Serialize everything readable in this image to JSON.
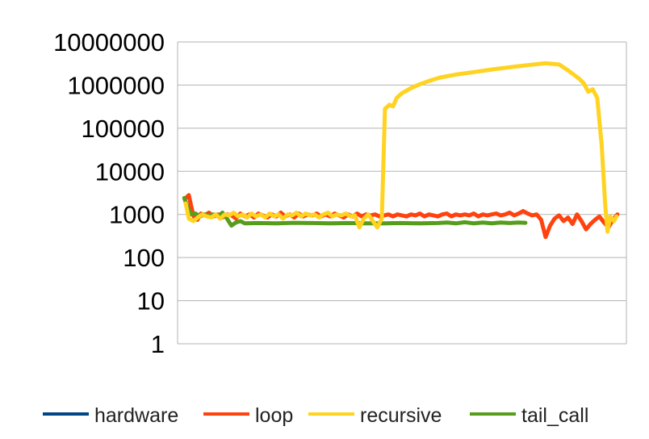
{
  "chart_data": {
    "type": "line",
    "title": "",
    "xlabel": "",
    "ylabel": "",
    "yscale": "log",
    "ylim": [
      1,
      10000000
    ],
    "yticks": [
      "1",
      "10",
      "100",
      "1000",
      "10000",
      "100000",
      "1000000",
      "10000000"
    ],
    "grid": "horizontal",
    "legend_position": "bottom",
    "xlim": [
      0,
      100
    ],
    "series": [
      {
        "name": "hardware",
        "color": "#004586",
        "points": []
      },
      {
        "name": "loop",
        "color": "#ff420e",
        "points": [
          [
            1.8,
            2400
          ],
          [
            2.5,
            2800
          ],
          [
            3,
            1600
          ],
          [
            3.6,
            900
          ],
          [
            4.4,
            750
          ],
          [
            5.2,
            1050
          ],
          [
            6,
            950
          ],
          [
            7,
            1100
          ],
          [
            8,
            900
          ],
          [
            9,
            1000
          ],
          [
            10,
            850
          ],
          [
            11,
            1000
          ],
          [
            12,
            950
          ],
          [
            13,
            800
          ],
          [
            14,
            1050
          ],
          [
            15,
            900
          ],
          [
            16,
            1000
          ],
          [
            17,
            850
          ],
          [
            18,
            1050
          ],
          [
            19,
            950
          ],
          [
            20,
            850
          ],
          [
            21,
            1000
          ],
          [
            22,
            900
          ],
          [
            23,
            1100
          ],
          [
            24,
            900
          ],
          [
            25,
            1000
          ],
          [
            26,
            850
          ],
          [
            27,
            1050
          ],
          [
            28,
            900
          ],
          [
            29,
            1000
          ],
          [
            30,
            950
          ],
          [
            31,
            1050
          ],
          [
            32,
            900
          ],
          [
            33,
            1000
          ],
          [
            34,
            900
          ],
          [
            35,
            1050
          ],
          [
            36,
            950
          ],
          [
            37,
            850
          ],
          [
            38,
            1000
          ],
          [
            39,
            900
          ],
          [
            40,
            1050
          ],
          [
            41,
            900
          ],
          [
            42,
            1000
          ],
          [
            43,
            950
          ],
          [
            44,
            1000
          ],
          [
            45,
            900
          ],
          [
            46,
            950
          ],
          [
            47,
            1000
          ],
          [
            48,
            900
          ],
          [
            49,
            1000
          ],
          [
            50,
            950
          ],
          [
            51,
            900
          ],
          [
            52,
            1000
          ],
          [
            53,
            950
          ],
          [
            54,
            1050
          ],
          [
            55,
            900
          ],
          [
            56,
            1000
          ],
          [
            57,
            950
          ],
          [
            58,
            900
          ],
          [
            59,
            1000
          ],
          [
            60,
            1050
          ],
          [
            61,
            900
          ],
          [
            62,
            1000
          ],
          [
            63,
            950
          ],
          [
            64,
            1000
          ],
          [
            65,
            950
          ],
          [
            66,
            1050
          ],
          [
            67,
            900
          ],
          [
            68,
            1000
          ],
          [
            69,
            950
          ],
          [
            70,
            1000
          ],
          [
            71,
            1050
          ],
          [
            72,
            950
          ],
          [
            73,
            1000
          ],
          [
            74,
            1100
          ],
          [
            75,
            950
          ],
          [
            76,
            1050
          ],
          [
            77,
            1200
          ],
          [
            78,
            1050
          ],
          [
            79,
            950
          ],
          [
            80,
            1000
          ],
          [
            81,
            750
          ],
          [
            82,
            300
          ],
          [
            83,
            550
          ],
          [
            84,
            800
          ],
          [
            85,
            950
          ],
          [
            86,
            700
          ],
          [
            87,
            850
          ],
          [
            88,
            600
          ],
          [
            89,
            1000
          ],
          [
            90,
            700
          ],
          [
            91,
            450
          ],
          [
            92,
            600
          ],
          [
            93,
            750
          ],
          [
            94,
            900
          ],
          [
            95,
            650
          ],
          [
            96,
            500
          ],
          [
            97,
            750
          ],
          [
            98,
            1000
          ]
        ]
      },
      {
        "name": "recursive",
        "color": "#ffd320",
        "points": [
          [
            1.8,
            1800
          ],
          [
            2.5,
            800
          ],
          [
            3.5,
            700
          ],
          [
            4.5,
            850
          ],
          [
            5.5,
            1000
          ],
          [
            6.5,
            900
          ],
          [
            7.5,
            850
          ],
          [
            8.5,
            1000
          ],
          [
            9.5,
            800
          ],
          [
            10.5,
            1000
          ],
          [
            11.5,
            950
          ],
          [
            12.5,
            1100
          ],
          [
            13.5,
            900
          ],
          [
            14.5,
            1000
          ],
          [
            15.5,
            850
          ],
          [
            16.5,
            1050
          ],
          [
            17.5,
            900
          ],
          [
            18.5,
            1000
          ],
          [
            19.5,
            850
          ],
          [
            20.5,
            1050
          ],
          [
            21.5,
            900
          ],
          [
            22.5,
            1000
          ],
          [
            23.5,
            800
          ],
          [
            24.5,
            1000
          ],
          [
            25.5,
            950
          ],
          [
            26.5,
            1100
          ],
          [
            27.5,
            900
          ],
          [
            28.5,
            1050
          ],
          [
            29.5,
            950
          ],
          [
            30.5,
            1000
          ],
          [
            31.5,
            850
          ],
          [
            32.5,
            1000
          ],
          [
            33.5,
            1100
          ],
          [
            34.5,
            900
          ],
          [
            35.5,
            1000
          ],
          [
            36.5,
            950
          ],
          [
            37.5,
            1050
          ],
          [
            38.5,
            900
          ],
          [
            39.5,
            950
          ],
          [
            40.5,
            500
          ],
          [
            41.5,
            800
          ],
          [
            42.5,
            1000
          ],
          [
            43.5,
            700
          ],
          [
            44.5,
            500
          ],
          [
            45.5,
            800
          ],
          [
            46.2,
            280000
          ],
          [
            47.2,
            350000
          ],
          [
            48,
            320000
          ],
          [
            48.8,
            500000
          ],
          [
            50,
            650000
          ],
          [
            52,
            850000
          ],
          [
            54,
            1050000
          ],
          [
            56,
            1250000
          ],
          [
            58.5,
            1500000
          ],
          [
            62,
            1750000
          ],
          [
            66,
            2000000
          ],
          [
            70,
            2300000
          ],
          [
            74,
            2600000
          ],
          [
            78,
            2900000
          ],
          [
            82,
            3200000
          ],
          [
            85,
            3000000
          ],
          [
            87,
            2200000
          ],
          [
            89.5,
            1400000
          ],
          [
            90.5,
            1100000
          ],
          [
            91.5,
            700000
          ],
          [
            92.5,
            800000
          ],
          [
            93.5,
            500000
          ],
          [
            94.5,
            40000
          ],
          [
            95.3,
            1500
          ],
          [
            95.8,
            400
          ],
          [
            96.4,
            900
          ],
          [
            97.2,
            700
          ],
          [
            97.8,
            900
          ]
        ]
      },
      {
        "name": "tail_call",
        "color": "#579d1c",
        "points": [
          [
            1.5,
            2400
          ],
          [
            2.2,
            1500
          ],
          [
            3,
            1000
          ],
          [
            4,
            1050
          ],
          [
            5,
            900
          ],
          [
            6,
            1000
          ],
          [
            7,
            950
          ],
          [
            8,
            1000
          ],
          [
            9,
            900
          ],
          [
            10,
            1100
          ],
          [
            11,
            800
          ],
          [
            12,
            550
          ],
          [
            13,
            650
          ],
          [
            14,
            700
          ],
          [
            15,
            620
          ],
          [
            18,
            630
          ],
          [
            22,
            620
          ],
          [
            26,
            640
          ],
          [
            30,
            630
          ],
          [
            34,
            620
          ],
          [
            38,
            630
          ],
          [
            42,
            620
          ],
          [
            46,
            620
          ],
          [
            50,
            630
          ],
          [
            54,
            620
          ],
          [
            58,
            630
          ],
          [
            60,
            650
          ],
          [
            62,
            620
          ],
          [
            64,
            660
          ],
          [
            66,
            620
          ],
          [
            68,
            650
          ],
          [
            70,
            620
          ],
          [
            72,
            650
          ],
          [
            74,
            630
          ],
          [
            76,
            650
          ],
          [
            77.5,
            640
          ]
        ]
      }
    ]
  }
}
